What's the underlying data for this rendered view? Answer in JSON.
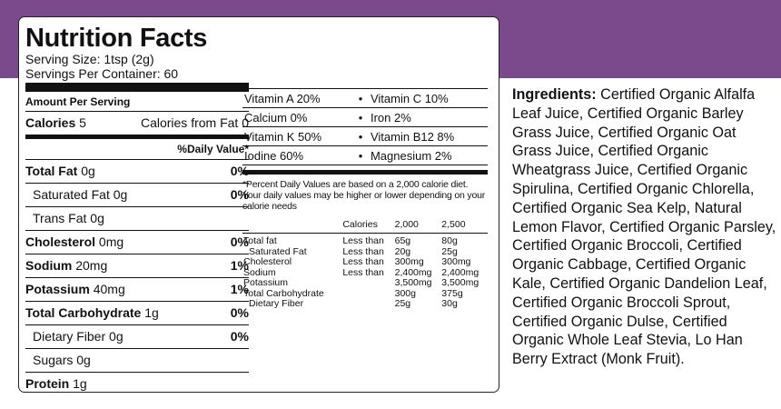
{
  "colors": {
    "band": "#7a4a8c",
    "border": "#222222",
    "text": "#111111"
  },
  "label": {
    "title": "Nutrition Facts",
    "serving_size": "Serving Size: 1tsp (2g)",
    "servings_per_container": "Servings Per Container: 60",
    "amount_per_serving": "Amount Per Serving",
    "calories_label": "Calories",
    "calories_value": "5",
    "calories_from_fat": "Calories from Fat 0",
    "daily_value_header": "%Daily Value*",
    "nutrients": [
      {
        "name": "Total Fat",
        "amount": "0g",
        "pct": "0%"
      },
      {
        "name": "Saturated Fat",
        "amount": "0g",
        "pct": "0%"
      },
      {
        "name": "Trans Fat",
        "amount": "0g",
        "pct": ""
      },
      {
        "name": "Cholesterol",
        "amount": "0mg",
        "pct": "0%"
      },
      {
        "name": "Sodium",
        "amount": "20mg",
        "pct": "1%"
      },
      {
        "name": "Potassium",
        "amount": "40mg",
        "pct": "1%"
      },
      {
        "name": "Total Carbohydrate",
        "amount": "1g",
        "pct": "0%"
      },
      {
        "name": "Dietary Fiber",
        "amount": "0g",
        "pct": "0%"
      },
      {
        "name": "Sugars",
        "amount": "0g",
        "pct": ""
      },
      {
        "name": "Protein",
        "amount": "1g",
        "pct": ""
      }
    ],
    "vitamins": [
      [
        "Vitamin A 20%",
        "Vitamin C 10%"
      ],
      [
        "Calcium 0%",
        "Iron 2%"
      ],
      [
        "Vitamin K 50%",
        "Vitamin B12 8%"
      ],
      [
        "Iodine 60%",
        "Magnesium 2%"
      ]
    ],
    "bullet": "•",
    "footnote": "*Percent Daily Values are based on a 2,000 calorie diet. Your daily values may be higher or lower depending on your calorie needs",
    "dv_table": {
      "header": [
        "",
        "Calories",
        "2,000",
        "2,500"
      ],
      "rows": [
        [
          "Total fat",
          "Less than",
          "65g",
          "80g"
        ],
        [
          "  Saturated Fat",
          "Less than",
          "20g",
          "25g"
        ],
        [
          "Cholesterol",
          "Less than",
          "300mg",
          "300mg"
        ],
        [
          "Sodium",
          "Less than",
          "2,400mg",
          "2,400mg"
        ],
        [
          "Potassium",
          "",
          "3,500mg",
          "3,500mg"
        ],
        [
          "Total Carbohydrate",
          "",
          "300g",
          "375g"
        ],
        [
          "  Dietary Fiber",
          "",
          "25g",
          "30g"
        ]
      ]
    }
  },
  "ingredients": {
    "label": "Ingredients:",
    "text": " Certified Organic Alfalfa Leaf Juice, Certified Organic Barley Grass Juice, Certified Organic Oat Grass Juice, Certified Organic Wheatgrass Juice, Certified Organic Spirulina, Certified Organic Chlorella, Certified Organic Sea Kelp, Natural Lemon Flavor, Certified Organic Parsley, Certified Organic Broccoli, Certified Organic Cabbage, Certified Organic Kale, Certified Organic Dandelion Leaf, Certified Organic Broccoli Sprout, Certified Organic Dulse, Certified Organic Whole Leaf Stevia, Lo Han Berry Extract (Monk Fruit)."
  }
}
